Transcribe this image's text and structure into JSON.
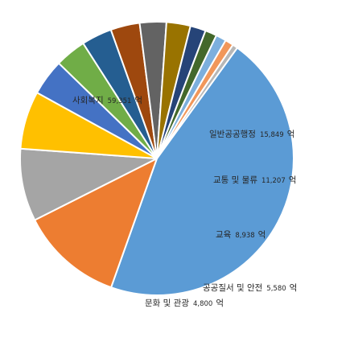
{
  "chart_data": {
    "type": "pie",
    "unit": "억",
    "title": "",
    "legend": "none",
    "categories": [
      "사회복지",
      "일반공공행정",
      "교통 및 물류",
      "교육",
      "공공질서 및 안전",
      "문화 및 관광",
      "",
      "",
      "",
      "",
      "",
      "",
      "",
      "",
      ""
    ],
    "values": [
      59351,
      15849,
      11207,
      8938,
      5580,
      4800,
      4700,
      4500,
      4100,
      3700,
      2400,
      1800,
      1600,
      1300,
      800
    ],
    "colors": [
      "#5b9bd5",
      "#ed7d31",
      "#a5a5a5",
      "#ffc000",
      "#4472c4",
      "#70ad47",
      "#255e91",
      "#9e480e",
      "#636363",
      "#997300",
      "#264478",
      "#43682b",
      "#7cafdd",
      "#f1975a",
      "#b7b7b7"
    ],
    "data_labels": [
      {
        "name": "사회복지",
        "value": "59,351",
        "unit": "억"
      },
      {
        "name": "일반공공행정",
        "value": "15,849",
        "unit": "억"
      },
      {
        "name": "교통 및 물류",
        "value": "11,207",
        "unit": "억"
      },
      {
        "name": "교육",
        "value": "8,938",
        "unit": "억"
      },
      {
        "name": "공공질서 및 안전",
        "value": "5,580",
        "unit": "억"
      },
      {
        "name": "문화 및 관광",
        "value": "4,800",
        "unit": "억"
      }
    ]
  }
}
